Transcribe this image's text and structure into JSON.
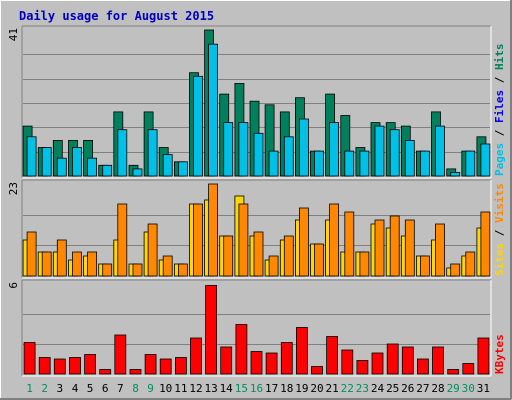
{
  "chart_data": {
    "title": "Daily usage for August 2015",
    "type": "bar",
    "x": [
      "1",
      "2",
      "3",
      "4",
      "5",
      "6",
      "7",
      "8",
      "9",
      "10",
      "11",
      "12",
      "13",
      "14",
      "15",
      "16",
      "17",
      "18",
      "19",
      "20",
      "21",
      "22",
      "23",
      "24",
      "25",
      "26",
      "27",
      "28",
      "29",
      "30",
      "31"
    ],
    "weekend_days": [
      "1",
      "2",
      "8",
      "9",
      "15",
      "16",
      "22",
      "23",
      "29",
      "30"
    ],
    "colors": {
      "background": "#C0C0C0",
      "frame": "#FFFFFF",
      "title": "#0000C0",
      "day_label": "#000000",
      "weekend_label": "#009060",
      "hits": "#00805C",
      "files": "#0000FF",
      "pages": "#00C0E8",
      "visits": "#FF8800",
      "sites": "#FFD700",
      "kbytes": "#FF0000",
      "gridline": "#808080"
    },
    "panels": [
      {
        "name": "hits-files-pages",
        "ymax_label": "41",
        "legend": [
          {
            "text": "Pages",
            "color": "#00C0E8"
          },
          {
            "text": " / ",
            "color": "#000000"
          },
          {
            "text": "Files",
            "color": "#0000FF"
          },
          {
            "text": " / ",
            "color": "#000000"
          },
          {
            "text": "Hits",
            "color": "#00805C"
          }
        ],
        "ylim": [
          0,
          41
        ],
        "series": [
          {
            "name": "Hits",
            "color": "#00805C",
            "values": [
              14,
              8,
              10,
              10,
              10,
              3,
              18,
              3,
              18,
              8,
              4,
              29,
              41,
              23,
              26,
              21,
              20,
              18,
              22,
              7,
              23,
              17,
              8,
              15,
              15,
              14,
              7,
              18,
              2,
              7,
              11
            ]
          },
          {
            "name": "Pages",
            "color": "#00C0E8",
            "values": [
              11,
              8,
              5,
              8,
              5,
              3,
              13,
              2,
              13,
              6,
              4,
              28,
              37,
              15,
              15,
              12,
              7,
              11,
              16,
              7,
              15,
              7,
              7,
              14,
              13,
              10,
              7,
              14,
              1,
              7,
              9
            ]
          }
        ]
      },
      {
        "name": "visits-sites",
        "ymax_label": "23",
        "legend": [
          {
            "text": "Sites",
            "color": "#FFD700"
          },
          {
            "text": " / ",
            "color": "#000000"
          },
          {
            "text": "Visits",
            "color": "#FF8800"
          }
        ],
        "ylim": [
          0,
          23
        ],
        "series": [
          {
            "name": "Sites",
            "color": "#FFD700",
            "values": [
              9,
              6,
              6,
              4,
              5,
              3,
              9,
              3,
              11,
              4,
              3,
              18,
              19,
              10,
              20,
              10,
              4,
              9,
              14,
              8,
              14,
              6,
              6,
              13,
              12,
              10,
              5,
              9,
              2,
              5,
              12
            ]
          },
          {
            "name": "Visits",
            "color": "#FF8800",
            "values": [
              11,
              6,
              9,
              6,
              6,
              3,
              18,
              3,
              13,
              5,
              3,
              18,
              23,
              10,
              18,
              11,
              5,
              10,
              17,
              8,
              18,
              16,
              6,
              14,
              15,
              14,
              5,
              13,
              3,
              6,
              16
            ]
          }
        ]
      },
      {
        "name": "kbytes",
        "ymax_label": "6",
        "legend": [
          {
            "text": "KBytes",
            "color": "#FF0000"
          }
        ],
        "ylim": [
          0,
          6
        ],
        "series": [
          {
            "name": "KBytes",
            "color": "#FF0000",
            "values": [
              2.1,
              1.1,
              1.0,
              1.1,
              1.3,
              0.3,
              2.6,
              0.3,
              1.3,
              1.0,
              1.1,
              2.4,
              5.9,
              1.8,
              3.3,
              1.5,
              1.4,
              2.1,
              3.1,
              0.5,
              2.5,
              1.6,
              0.9,
              1.4,
              2.0,
              1.8,
              1.0,
              1.8,
              0.3,
              0.7,
              2.4
            ]
          }
        ]
      }
    ]
  }
}
